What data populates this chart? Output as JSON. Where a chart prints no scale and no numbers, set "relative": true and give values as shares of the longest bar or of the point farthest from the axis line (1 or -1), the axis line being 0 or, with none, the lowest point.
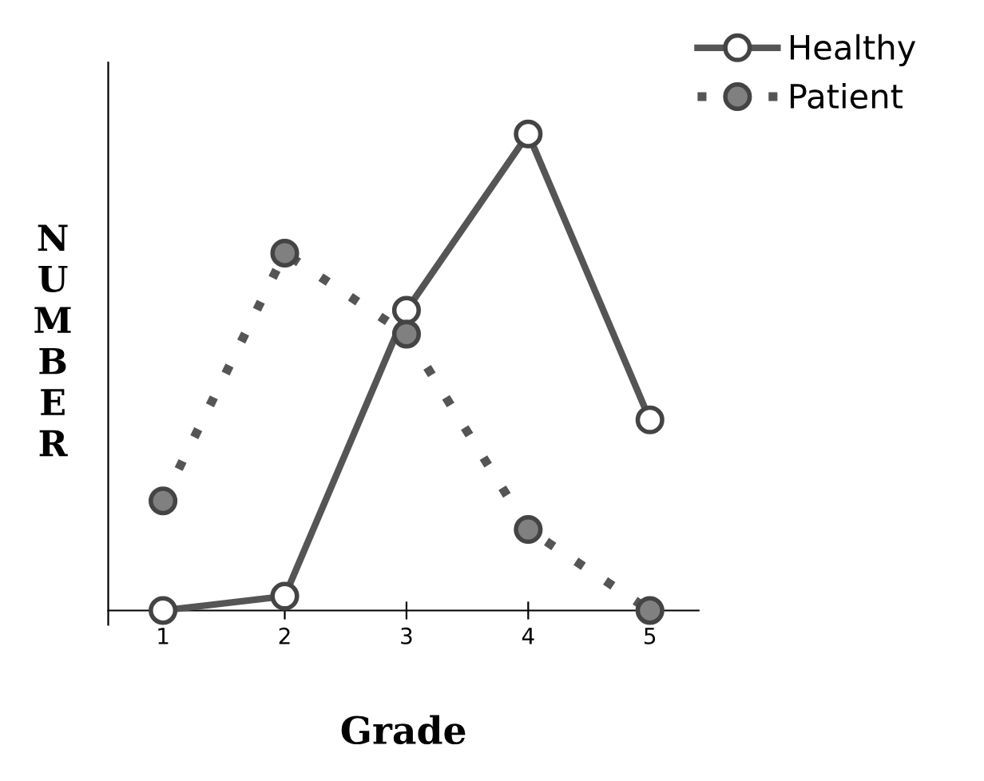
{
  "chart_data": {
    "type": "line",
    "xlabel": "Grade",
    "ylabel": "NUMBER",
    "categories": [
      "1",
      "2",
      "3",
      "4",
      "5"
    ],
    "relative": true,
    "legend": "top right",
    "marker": "circle",
    "grid": false,
    "series": [
      {
        "name": "Healthy",
        "color": "#555555",
        "line_style": "solid",
        "values": [
          0,
          0.03,
          0.63,
          1,
          0.4
        ]
      },
      {
        "name": "Patient",
        "color": "#555555",
        "line_style": "dotted",
        "values": [
          0.23,
          0.75,
          0.58,
          0.17,
          0
        ]
      }
    ]
  }
}
